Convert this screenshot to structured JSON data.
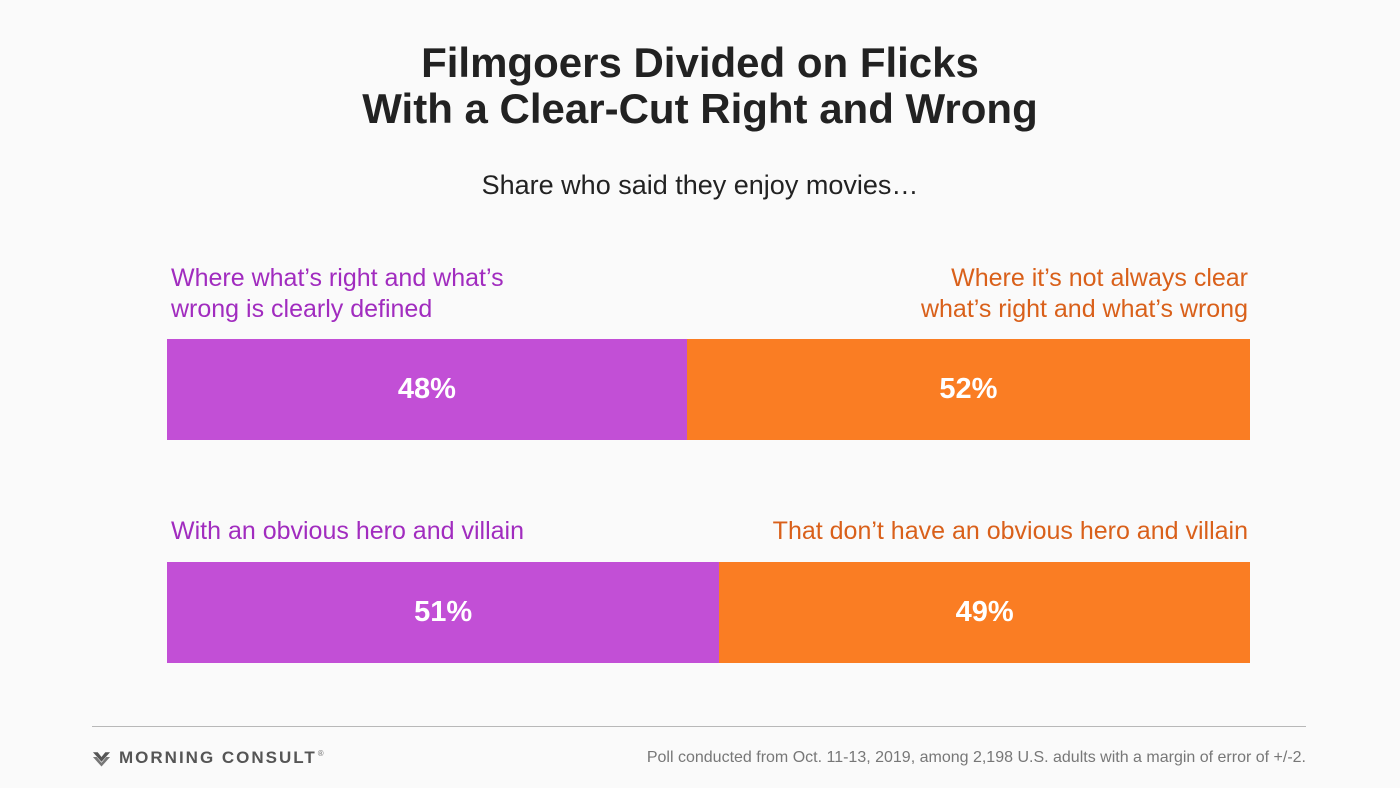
{
  "chart_data": {
    "type": "bar",
    "stacked": true,
    "orientation": "horizontal",
    "title_lines": [
      "Filmgoers Divided on Flicks",
      "With a Clear-Cut Right and Wrong"
    ],
    "subtitle": "Share who said they enjoy movies…",
    "rows": [
      {
        "segments": [
          {
            "label_lines": [
              "Where what’s right and what’s",
              "wrong is clearly defined"
            ],
            "value": 48,
            "value_label": "48%",
            "color": "#c24fd6",
            "label_color": "#a12cbf"
          },
          {
            "label_lines": [
              "Where it’s not always clear",
              "what’s right and what’s wrong"
            ],
            "value": 52,
            "value_label": "52%",
            "color": "#fa7d23",
            "label_color": "#d9601a"
          }
        ]
      },
      {
        "segments": [
          {
            "label_lines": [
              "With an obvious hero and villain"
            ],
            "value": 51,
            "value_label": "51%",
            "color": "#c24fd6",
            "label_color": "#a12cbf"
          },
          {
            "label_lines": [
              "That don’t have an obvious hero and villain"
            ],
            "value": 49,
            "value_label": "49%",
            "color": "#fa7d23",
            "label_color": "#d9601a"
          }
        ]
      }
    ],
    "xlim": [
      0,
      100
    ],
    "grid": false,
    "legend": "none"
  },
  "footer": {
    "brand": "MORNING CONSULT",
    "brand_mark": "®",
    "logo_icon": "morning-consult-logo-icon",
    "note": "Poll conducted from Oct. 11-13, 2019, among 2,198 U.S. adults with a margin of error of +/-2."
  }
}
